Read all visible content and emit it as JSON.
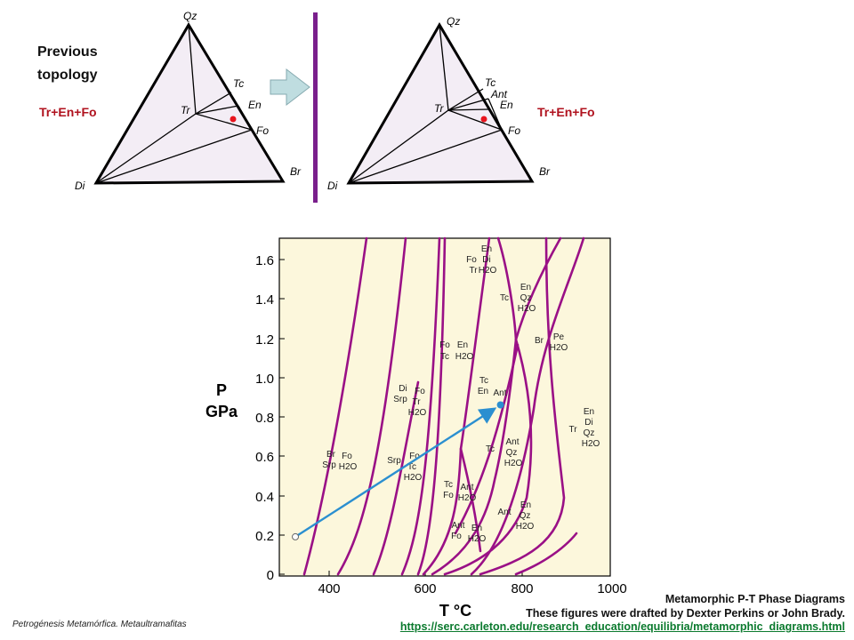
{
  "top_panel": {
    "title_lines": [
      "Previous",
      "topology"
    ],
    "left_diagram": {
      "vertices": {
        "Qz": "Qz",
        "Di": "Di",
        "Br": "Br"
      },
      "labels": {
        "Tc": "Tc",
        "En": "En",
        "Tr": "Tr",
        "Fo": "Fo"
      },
      "assemblage": "Tr+En+Fo"
    },
    "right_diagram": {
      "vertices": {
        "Qz": "Qz",
        "Di": "Di",
        "Br": "Br"
      },
      "labels": {
        "Tc": "Tc",
        "Ant": "Ant",
        "En": "En",
        "Tr": "Tr",
        "Fo": "Fo"
      },
      "assemblage": "Tr+En+Fo"
    },
    "colors": {
      "fill": "#f3edf5",
      "arrow": "#bfdde0",
      "divider": "#7a1f8c",
      "point": "#e8141e"
    }
  },
  "phase_diagram": {
    "y_axis_label_lines": [
      "P",
      "GPa"
    ],
    "x_axis_label": "T °C",
    "y_ticks": [
      "0",
      "0.2",
      "0.4",
      "0.6",
      "0.8",
      "1.0",
      "1.2",
      "1.4",
      "1.6"
    ],
    "x_ticks": [
      "400",
      "600",
      "800",
      "1000"
    ],
    "field_labels": [
      {
        "lines": [
          "En",
          "Di",
          "Fo",
          "Tr",
          "H2O"
        ]
      },
      {
        "lines": [
          "En",
          "Qz",
          "Tc",
          "H2O"
        ]
      },
      {
        "lines": [
          "Fo",
          "En",
          "Tc",
          "H2O"
        ]
      },
      {
        "lines": [
          "Br",
          "Pe",
          "H2O"
        ]
      },
      {
        "lines": [
          "Di",
          "Fo",
          "Srp",
          "Tr",
          "H2O"
        ]
      },
      {
        "lines": [
          "Tc",
          "En",
          "Ant"
        ]
      },
      {
        "lines": [
          "En",
          "Di",
          "Tr",
          "Qz",
          "H2O"
        ]
      },
      {
        "lines": [
          "Br",
          "Fo",
          "Srp",
          "H2O"
        ]
      },
      {
        "lines": [
          "Srp",
          "Fo",
          "Tc",
          "H2O"
        ]
      },
      {
        "lines": [
          "Ant",
          "Tc",
          "Qz",
          "H2O"
        ]
      },
      {
        "lines": [
          "Tc",
          "Ant",
          "Fo",
          "H2O"
        ]
      },
      {
        "lines": [
          "En",
          "Ant",
          "Qz",
          "H2O"
        ]
      },
      {
        "lines": [
          "Ant",
          "En",
          "Fo",
          "H2O"
        ]
      }
    ],
    "path_arrow": {
      "start": {
        "T": 330,
        "P": 0.19
      },
      "end": {
        "T": 755,
        "P": 0.86
      }
    },
    "colors": {
      "background": "#fcf7dc",
      "curves": "#9a1086",
      "arrow": "#2b8fd0"
    }
  },
  "caption": {
    "title": "Metamorphic P-T Phase Diagrams",
    "credit": "These figures were drafted by Dexter Perkins or John Brady.",
    "url": "https://serc.carleton.edu/research_education/equilibria/metamorphic_diagrams.html"
  },
  "footer": "Petrogénesis Metamórfica. Metaultramafitas"
}
